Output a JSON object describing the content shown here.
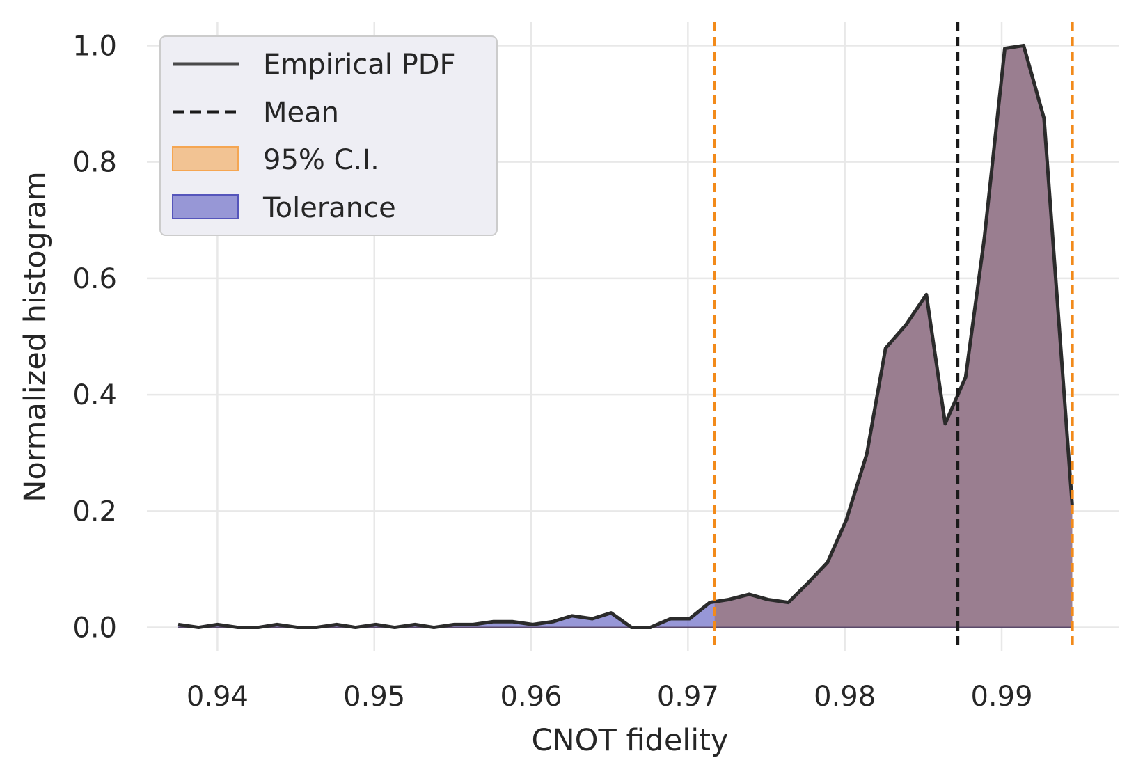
{
  "chart_data": {
    "type": "area",
    "xlabel": "CNOT fidelity",
    "ylabel": "Normalized histogram",
    "xlim": [
      0.9355,
      0.9975
    ],
    "ylim": [
      -0.04,
      1.04
    ],
    "xticks": [
      0.94,
      0.95,
      0.96,
      0.97,
      0.98,
      0.99
    ],
    "xtick_labels": [
      "0.94",
      "0.95",
      "0.96",
      "0.97",
      "0.98",
      "0.99"
    ],
    "yticks": [
      0.0,
      0.2,
      0.4,
      0.6,
      0.8,
      1.0
    ],
    "ytick_labels": [
      "0.0",
      "0.2",
      "0.4",
      "0.6",
      "0.8",
      "1.0"
    ],
    "grid": true,
    "legend_position": "top-left",
    "legend": [
      {
        "label": "Empirical PDF",
        "kind": "line"
      },
      {
        "label": "Mean",
        "kind": "dashed-line"
      },
      {
        "label": "95% C.I.",
        "kind": "patch"
      },
      {
        "label": "Tolerance",
        "kind": "patch"
      }
    ],
    "series": [
      {
        "name": "Empirical PDF",
        "x": [
          0.9375,
          0.9388,
          0.94,
          0.9413,
          0.9426,
          0.9438,
          0.9451,
          0.9463,
          0.9476,
          0.9488,
          0.9501,
          0.9513,
          0.9526,
          0.9538,
          0.9551,
          0.9563,
          0.9576,
          0.9588,
          0.9601,
          0.9614,
          0.9626,
          0.9639,
          0.9651,
          0.9664,
          0.9676,
          0.9689,
          0.9701,
          0.9714,
          0.9726,
          0.9739,
          0.9751,
          0.9764,
          0.9776,
          0.9789,
          0.9801,
          0.9814,
          0.9826,
          0.9839,
          0.9852,
          0.9864,
          0.9877,
          0.9889,
          0.9902,
          0.9914,
          0.9927,
          0.9945
        ],
        "y": [
          0.005,
          0.0,
          0.005,
          0.0,
          0.0,
          0.005,
          0.0,
          0.0,
          0.005,
          0.0,
          0.005,
          0.0,
          0.005,
          0.0,
          0.005,
          0.005,
          0.01,
          0.01,
          0.005,
          0.01,
          0.02,
          0.015,
          0.025,
          0.0,
          0.0,
          0.015,
          0.015,
          0.043,
          0.048,
          0.057,
          0.048,
          0.043,
          0.075,
          0.112,
          0.185,
          0.298,
          0.48,
          0.52,
          0.572,
          0.35,
          0.43,
          0.67,
          0.995,
          1.0,
          0.875,
          0.21
        ]
      }
    ],
    "mean": 0.9872,
    "ci_95": [
      0.9717,
      0.9945
    ],
    "colors": {
      "pdf_line": "#2b2b2b",
      "mean_line": "#1a1a1a",
      "ci_line": "#f28a1a",
      "ci_fill": "#f5a652",
      "tolerance_fill": "#7a7acc",
      "overlap_fill": "#9a7e90",
      "legend_bg": "#eeeef4",
      "grid": "#e8e8e8"
    }
  }
}
